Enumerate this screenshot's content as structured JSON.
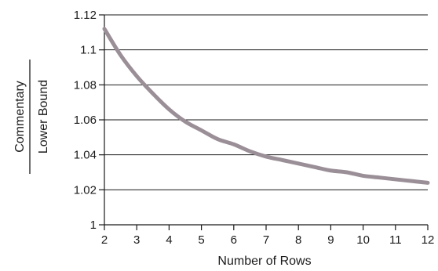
{
  "chart_data": {
    "type": "line",
    "xlabel": "Number of Rows",
    "ylabel_numerator": "Commentary",
    "ylabel_denominator": "Lower Bound",
    "xlim": [
      2,
      12
    ],
    "ylim": [
      1,
      1.12
    ],
    "x_ticks": [
      2,
      3,
      4,
      5,
      6,
      7,
      8,
      9,
      10,
      11,
      12
    ],
    "y_ticks": [
      1,
      1.02,
      1.04,
      1.06,
      1.08,
      1.1,
      1.12
    ],
    "y_tick_labels": [
      "1",
      "1.02",
      "1.04",
      "1.06",
      "1.08",
      "1.1",
      "1.12"
    ],
    "grid": "horizontal",
    "series": [
      {
        "color": "#9b8f97",
        "x": [
          2,
          2.5,
          3,
          3.5,
          4,
          4.5,
          5,
          5.5,
          6,
          6.5,
          7,
          7.5,
          8,
          8.5,
          9,
          9.5,
          10,
          10.5,
          11,
          11.5,
          12
        ],
        "y": [
          1.112,
          1.097,
          1.085,
          1.075,
          1.066,
          1.059,
          1.054,
          1.049,
          1.046,
          1.042,
          1.039,
          1.037,
          1.035,
          1.033,
          1.031,
          1.03,
          1.028,
          1.027,
          1.026,
          1.025,
          1.024
        ]
      }
    ]
  }
}
